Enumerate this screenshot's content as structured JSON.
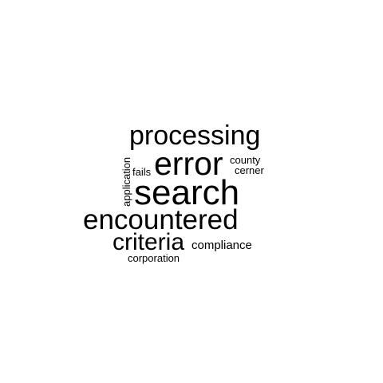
{
  "cloud": {
    "text_color": "#000000",
    "background": "#ffffff",
    "words": {
      "processing": "processing",
      "error": "error",
      "county": "county",
      "cerner": "cerner",
      "fails": "fails",
      "application": "application",
      "search": "search",
      "encountered": "encountered",
      "criteria": "criteria",
      "compliance": "compliance",
      "corporation": "corporation"
    }
  }
}
